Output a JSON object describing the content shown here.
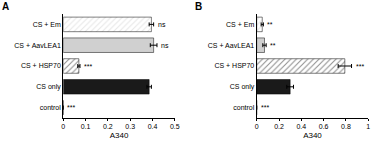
{
  "chart_data": [
    {
      "type": "bar",
      "title": "A",
      "orientation": "horizontal",
      "categories": [
        "CS + Em",
        "CS + AavLEA1",
        "CS + HSP70",
        "CS only",
        "control"
      ],
      "values": [
        0.395,
        0.405,
        0.07,
        0.385,
        0.0
      ],
      "errors": [
        0.01,
        0.015,
        0.005,
        0.01,
        0.0
      ],
      "annotations": [
        "ns",
        "ns",
        "***",
        null,
        "***"
      ],
      "colors": [
        "#e6e6e6",
        "#d0d0d0",
        "#8c8c8c",
        "#1a1a1a",
        "#000000"
      ],
      "x_label": "A340",
      "xlim": [
        0,
        0.5
      ],
      "xticks": [
        0,
        0.1,
        0.2,
        0.3,
        0.4,
        0.5
      ]
    },
    {
      "type": "bar",
      "title": "B",
      "orientation": "horizontal",
      "categories": [
        "CS + Em",
        "CS + AavLEA1",
        "CS + HSP70",
        "CS only",
        "control"
      ],
      "values": [
        0.05,
        0.07,
        0.79,
        0.3,
        0.0
      ],
      "errors": [
        0.01,
        0.015,
        0.06,
        0.03,
        0.0
      ],
      "annotations": [
        "**",
        "**",
        "***",
        null,
        "***"
      ],
      "colors": [
        "#e6e6e6",
        "#d0d0d0",
        "#8c8c8c",
        "#1a1a1a",
        "#000000"
      ],
      "x_label": "A340",
      "xlim": [
        0,
        1
      ],
      "xticks": [
        0,
        0.2,
        0.4,
        0.6,
        0.8,
        1
      ]
    }
  ]
}
